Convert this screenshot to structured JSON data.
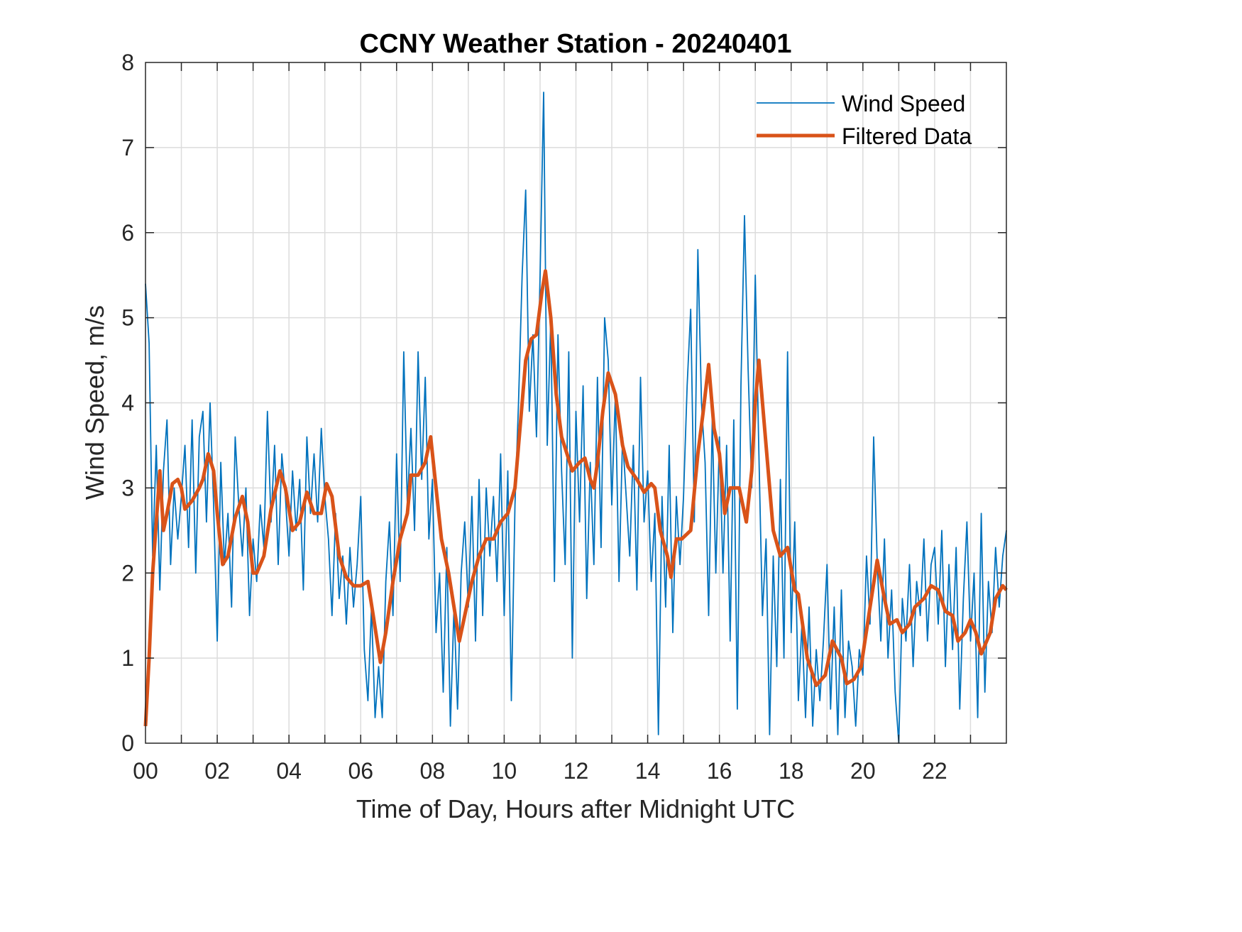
{
  "chart_data": {
    "type": "line",
    "title": "CCNY Weather Station - 20240401",
    "xlabel": "Time of Day, Hours after Midnight UTC",
    "ylabel": "Wind Speed, m/s",
    "xlim": [
      0,
      24
    ],
    "ylim": [
      0,
      8
    ],
    "xticks": [
      0,
      2,
      4,
      6,
      8,
      10,
      12,
      14,
      16,
      18,
      20,
      22
    ],
    "xtick_labels": [
      "00",
      "02",
      "04",
      "06",
      "08",
      "10",
      "12",
      "14",
      "16",
      "18",
      "20",
      "22"
    ],
    "yticks": [
      0,
      1,
      2,
      3,
      4,
      5,
      6,
      7,
      8
    ],
    "ytick_labels": [
      "0",
      "1",
      "2",
      "3",
      "4",
      "5",
      "6",
      "7",
      "8"
    ],
    "grid": true,
    "legend_position": "top-right",
    "series": [
      {
        "name": "Wind Speed",
        "color": "#0072BD",
        "x_step": 0.1,
        "values": [
          5.4,
          4.7,
          2.2,
          3.5,
          1.8,
          3.2,
          3.8,
          2.1,
          3.0,
          2.4,
          2.9,
          3.5,
          2.3,
          3.8,
          2.0,
          3.6,
          3.9,
          2.6,
          4.0,
          2.8,
          1.2,
          3.3,
          2.1,
          2.7,
          1.6,
          3.6,
          2.8,
          2.2,
          3.0,
          1.5,
          2.4,
          1.9,
          2.8,
          2.3,
          3.9,
          2.6,
          3.5,
          2.1,
          3.4,
          2.9,
          2.2,
          3.2,
          2.5,
          3.1,
          1.8,
          3.6,
          2.7,
          3.4,
          2.6,
          3.7,
          2.9,
          2.4,
          1.5,
          2.7,
          1.7,
          2.2,
          1.4,
          2.3,
          1.6,
          2.1,
          2.9,
          1.1,
          0.5,
          1.6,
          0.3,
          0.9,
          0.3,
          1.9,
          2.6,
          1.5,
          3.4,
          1.9,
          4.6,
          2.8,
          3.7,
          2.5,
          4.6,
          3.1,
          4.3,
          2.4,
          3.1,
          1.3,
          2.0,
          0.6,
          2.3,
          0.2,
          1.6,
          0.4,
          2.0,
          2.6,
          1.6,
          2.9,
          1.2,
          3.1,
          1.5,
          3.0,
          2.2,
          2.9,
          1.9,
          3.4,
          1.5,
          3.2,
          0.5,
          2.8,
          4.0,
          5.5,
          6.5,
          3.9,
          4.8,
          3.6,
          5.5,
          7.65,
          3.5,
          5.0,
          1.9,
          4.8,
          3.2,
          2.1,
          4.6,
          1.0,
          3.9,
          2.6,
          4.2,
          1.7,
          3.3,
          2.1,
          4.3,
          2.3,
          5.0,
          4.5,
          2.8,
          4.1,
          1.9,
          3.6,
          2.9,
          2.2,
          3.5,
          1.8,
          4.3,
          2.6,
          3.2,
          1.9,
          2.7,
          0.1,
          2.9,
          1.6,
          3.5,
          1.3,
          2.9,
          2.1,
          2.9,
          4.2,
          5.1,
          2.6,
          5.8,
          4.0,
          3.3,
          1.5,
          3.8,
          2.0,
          3.6,
          2.0,
          3.5,
          1.2,
          3.8,
          0.4,
          4.2,
          6.2,
          4.4,
          3.0,
          5.5,
          3.4,
          1.5,
          2.4,
          0.1,
          2.2,
          0.9,
          3.1,
          1.0,
          4.6,
          1.3,
          2.6,
          0.5,
          1.4,
          0.3,
          1.6,
          0.2,
          1.1,
          0.5,
          1.2,
          2.1,
          0.4,
          1.6,
          0.1,
          1.8,
          0.3,
          1.2,
          0.9,
          0.2,
          1.1,
          0.8,
          2.2,
          1.4,
          3.6,
          2.1,
          1.2,
          2.4,
          1.0,
          1.8,
          0.6,
          0.0,
          1.7,
          1.2,
          2.1,
          0.9,
          1.9,
          1.5,
          2.4,
          1.2,
          2.1,
          2.3,
          1.4,
          2.5,
          0.9,
          2.1,
          1.1,
          2.3,
          0.4,
          1.7,
          2.6,
          1.2,
          2.0,
          0.3,
          2.7,
          0.6,
          1.9,
          1.3,
          2.3,
          1.6,
          2.2,
          2.5
        ]
      },
      {
        "name": "Filtered Data",
        "color": "#D95319",
        "x": [
          0,
          0.1,
          0.2,
          0.3,
          0.4,
          0.5,
          0.6,
          0.75,
          0.9,
          1.0,
          1.1,
          1.3,
          1.5,
          1.6,
          1.75,
          1.9,
          2.0,
          2.15,
          2.3,
          2.5,
          2.7,
          2.85,
          3.0,
          3.1,
          3.3,
          3.5,
          3.75,
          3.9,
          4.1,
          4.3,
          4.5,
          4.7,
          4.9,
          5.05,
          5.2,
          5.4,
          5.6,
          5.8,
          6.0,
          6.2,
          6.35,
          6.55,
          6.7,
          6.9,
          7.1,
          7.3,
          7.4,
          7.6,
          7.8,
          7.95,
          8.1,
          8.25,
          8.45,
          8.6,
          8.75,
          8.9,
          9.1,
          9.3,
          9.5,
          9.7,
          9.9,
          10.1,
          10.3,
          10.5,
          10.6,
          10.75,
          10.9,
          11.05,
          11.15,
          11.3,
          11.45,
          11.6,
          11.75,
          11.9,
          12.1,
          12.25,
          12.4,
          12.5,
          12.6,
          12.75,
          12.9,
          13.1,
          13.3,
          13.45,
          13.7,
          13.9,
          14.1,
          14.2,
          14.35,
          14.55,
          14.65,
          14.8,
          14.95,
          15.2,
          15.4,
          15.55,
          15.7,
          15.85,
          16.0,
          16.15,
          16.3,
          16.55,
          16.75,
          16.9,
          17.0,
          17.1,
          17.3,
          17.5,
          17.7,
          17.9,
          18.1,
          18.2,
          18.45,
          18.7,
          18.95,
          19.15,
          19.4,
          19.55,
          19.75,
          19.95,
          20.2,
          20.4,
          20.6,
          20.75,
          20.95,
          21.1,
          21.3,
          21.45,
          21.7,
          21.9,
          22.1,
          22.3,
          22.5,
          22.65,
          22.85,
          23.0,
          23.15,
          23.3,
          23.55,
          23.7,
          23.9,
          24.0
        ],
        "values": [
          0.2,
          1.0,
          2.0,
          2.6,
          3.2,
          2.5,
          2.7,
          3.05,
          3.1,
          3.0,
          2.75,
          2.85,
          3.0,
          3.1,
          3.4,
          3.2,
          2.7,
          2.1,
          2.2,
          2.65,
          2.9,
          2.6,
          2.0,
          2.0,
          2.2,
          2.75,
          3.2,
          3.0,
          2.5,
          2.6,
          2.95,
          2.7,
          2.7,
          3.05,
          2.9,
          2.2,
          1.95,
          1.85,
          1.85,
          1.9,
          1.5,
          0.95,
          1.3,
          1.9,
          2.4,
          2.7,
          3.15,
          3.15,
          3.3,
          3.6,
          3.0,
          2.4,
          2.0,
          1.6,
          1.2,
          1.5,
          1.9,
          2.2,
          2.4,
          2.4,
          2.6,
          2.7,
          3.0,
          4.0,
          4.5,
          4.75,
          4.8,
          5.3,
          5.55,
          5.0,
          4.1,
          3.6,
          3.4,
          3.2,
          3.3,
          3.35,
          3.1,
          3.0,
          3.3,
          3.9,
          4.35,
          4.1,
          3.5,
          3.25,
          3.1,
          2.95,
          3.05,
          3.0,
          2.5,
          2.2,
          1.95,
          2.4,
          2.4,
          2.5,
          3.4,
          3.9,
          4.45,
          3.7,
          3.4,
          2.7,
          3.0,
          3.0,
          2.6,
          3.2,
          4.0,
          4.5,
          3.5,
          2.5,
          2.2,
          2.3,
          1.8,
          1.75,
          1.0,
          0.68,
          0.8,
          1.2,
          1.0,
          0.7,
          0.75,
          0.9,
          1.6,
          2.15,
          1.7,
          1.4,
          1.45,
          1.3,
          1.4,
          1.6,
          1.7,
          1.85,
          1.8,
          1.55,
          1.5,
          1.2,
          1.3,
          1.45,
          1.3,
          1.05,
          1.3,
          1.7,
          1.85,
          1.8
        ]
      }
    ]
  }
}
